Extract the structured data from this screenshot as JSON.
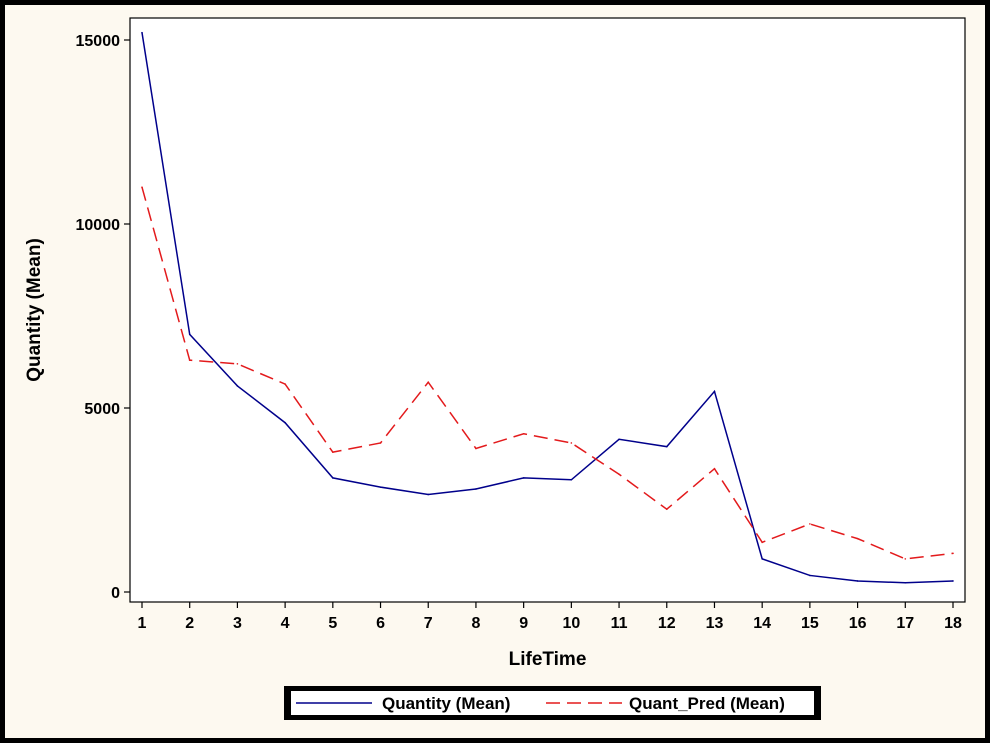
{
  "chart_data": {
    "type": "line",
    "title": "",
    "xlabel": "LifeTime",
    "ylabel": "Quantity (Mean)",
    "x": [
      1,
      2,
      3,
      4,
      5,
      6,
      7,
      8,
      9,
      10,
      11,
      12,
      13,
      14,
      15,
      16,
      17,
      18
    ],
    "xlim": [
      1,
      18
    ],
    "ylim": [
      0,
      15000
    ],
    "yticks": [
      0,
      5000,
      10000,
      15000
    ],
    "grid": false,
    "legend_position": "bottom",
    "series": [
      {
        "name": "Quantity (Mean)",
        "color": "#00008b",
        "dash": "solid",
        "values": [
          15200,
          7000,
          5600,
          4600,
          3100,
          2850,
          2650,
          2800,
          3100,
          3050,
          4150,
          3950,
          5450,
          900,
          450,
          300,
          250,
          300
        ]
      },
      {
        "name": "Quant_Pred (Mean)",
        "color": "#e31a1c",
        "dash": "dashed",
        "values": [
          11000,
          6300,
          6200,
          5650,
          3800,
          4050,
          5700,
          3900,
          4300,
          4050,
          3200,
          2250,
          3350,
          1350,
          1850,
          1450,
          900,
          1050
        ]
      }
    ]
  }
}
